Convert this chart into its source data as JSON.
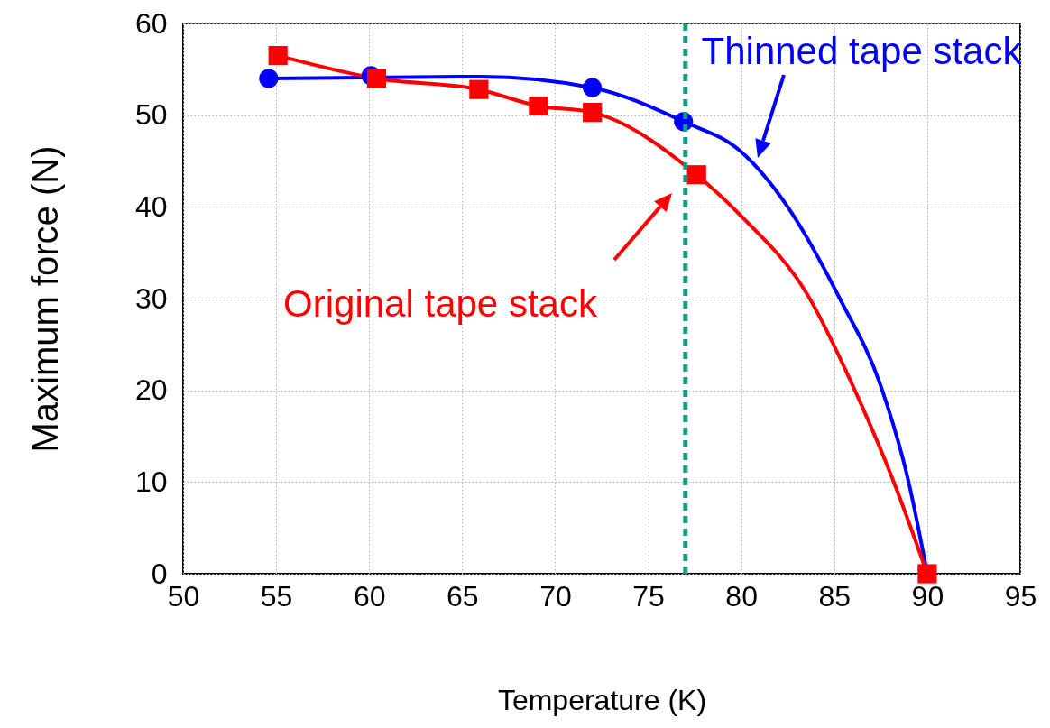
{
  "chart_data": {
    "type": "line",
    "xlabel": "Temperature (K)",
    "ylabel": "Maximum  force (N)",
    "xlim": [
      50,
      95
    ],
    "xticks": [
      50,
      55,
      60,
      65,
      70,
      75,
      80,
      85,
      90,
      95
    ],
    "ylim": [
      0,
      60
    ],
    "yticks": [
      0,
      10,
      20,
      30,
      40,
      50,
      60
    ],
    "grid": true,
    "series": [
      {
        "color": "#0000ff",
        "marker": "none",
        "x": [
          54.6,
          66,
          72,
          76.9,
          80,
          82.5,
          85.3,
          87.5,
          89,
          90
        ],
        "values": [
          54,
          54.2,
          53,
          49.3,
          46,
          40,
          30,
          20.5,
          10,
          0
        ]
      },
      {
        "color": "#ff0000",
        "marker": "none",
        "x": [
          55.1,
          60.4,
          65.9,
          69.1,
          72,
          77.6,
          80,
          83.6,
          86,
          88.2,
          90
        ],
        "values": [
          56.5,
          54,
          52.8,
          51,
          50.3,
          43.5,
          39,
          30.3,
          20.5,
          10,
          0
        ]
      },
      {
        "type": "scatter",
        "color": "#0000ff",
        "marker": "circle",
        "x": [
          54.6,
          60.1,
          72,
          76.9
        ],
        "values": [
          54,
          54.3,
          53,
          49.3
        ]
      },
      {
        "type": "scatter",
        "color": "#ff0000",
        "marker": "square",
        "x": [
          55.1,
          60.4,
          65.9,
          69.1,
          72,
          77.6,
          90
        ],
        "values": [
          56.5,
          54,
          52.8,
          51,
          50.3,
          43.5,
          0
        ]
      }
    ],
    "ref_lines": [
      {
        "axis": "x",
        "value": 77,
        "color": "#139f7f",
        "line_style": "dashed"
      }
    ],
    "annotations": [
      "Thinned tape stack",
      "Original tape stack"
    ]
  }
}
